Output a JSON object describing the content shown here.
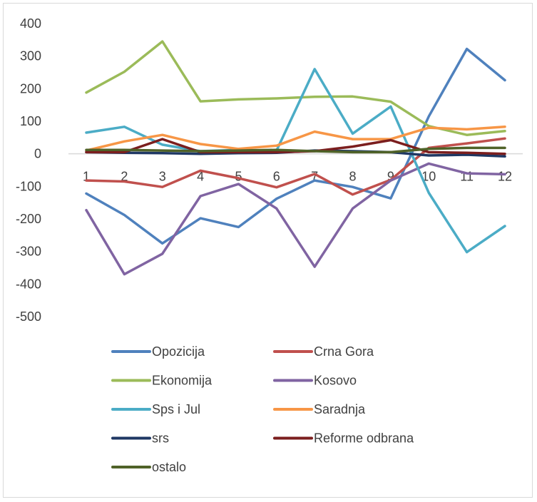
{
  "chart_data": {
    "type": "line",
    "title": "",
    "xlabel": "",
    "ylabel": "",
    "ylim": [
      -500,
      400
    ],
    "y_ticks": [
      400,
      300,
      200,
      100,
      0,
      -100,
      -200,
      -300,
      -400,
      -500
    ],
    "grid": false,
    "legend_position": "bottom",
    "categories": [
      "1",
      "2",
      "3",
      "4",
      "5",
      "6",
      "7",
      "8",
      "9",
      "10",
      "11",
      "12"
    ],
    "series": [
      {
        "name": "Opozicija",
        "color": "#4f81bd",
        "values": [
          -122,
          -188,
          -275,
          -198,
          -225,
          -138,
          -82,
          -102,
          -137,
          115,
          322,
          226
        ]
      },
      {
        "name": "Crna Gora",
        "color": "#c0504d",
        "values": [
          -82,
          -85,
          -102,
          -52,
          -75,
          -103,
          -62,
          -125,
          -80,
          18,
          32,
          47
        ]
      },
      {
        "name": "Ekonomija",
        "color": "#9bbb59",
        "values": [
          188,
          252,
          345,
          161,
          167,
          170,
          175,
          176,
          160,
          85,
          58,
          70
        ]
      },
      {
        "name": "Kosovo",
        "color": "#8064a2",
        "values": [
          -173,
          -370,
          -307,
          -130,
          -93,
          -168,
          -347,
          -168,
          -82,
          -30,
          -60,
          -63
        ]
      },
      {
        "name": "Sps i Jul",
        "color": "#4bacc6",
        "values": [
          65,
          83,
          28,
          8,
          12,
          10,
          260,
          62,
          145,
          -120,
          -302,
          -222
        ]
      },
      {
        "name": "Saradnja",
        "color": "#f79646",
        "values": [
          10,
          38,
          58,
          30,
          15,
          25,
          68,
          45,
          45,
          80,
          75,
          83
        ]
      },
      {
        "name": "srs",
        "color": "#1f3864",
        "values": [
          5,
          3,
          2,
          0,
          2,
          3,
          10,
          8,
          5,
          -5,
          -3,
          -8
        ]
      },
      {
        "name": "Reforme odbrana",
        "color": "#7b1e1e",
        "values": [
          5,
          5,
          45,
          5,
          5,
          5,
          8,
          22,
          42,
          5,
          3,
          0
        ]
      },
      {
        "name": "ostalo",
        "color": "#4f6228",
        "values": [
          12,
          12,
          10,
          8,
          10,
          12,
          8,
          5,
          5,
          15,
          18,
          18
        ]
      }
    ]
  }
}
